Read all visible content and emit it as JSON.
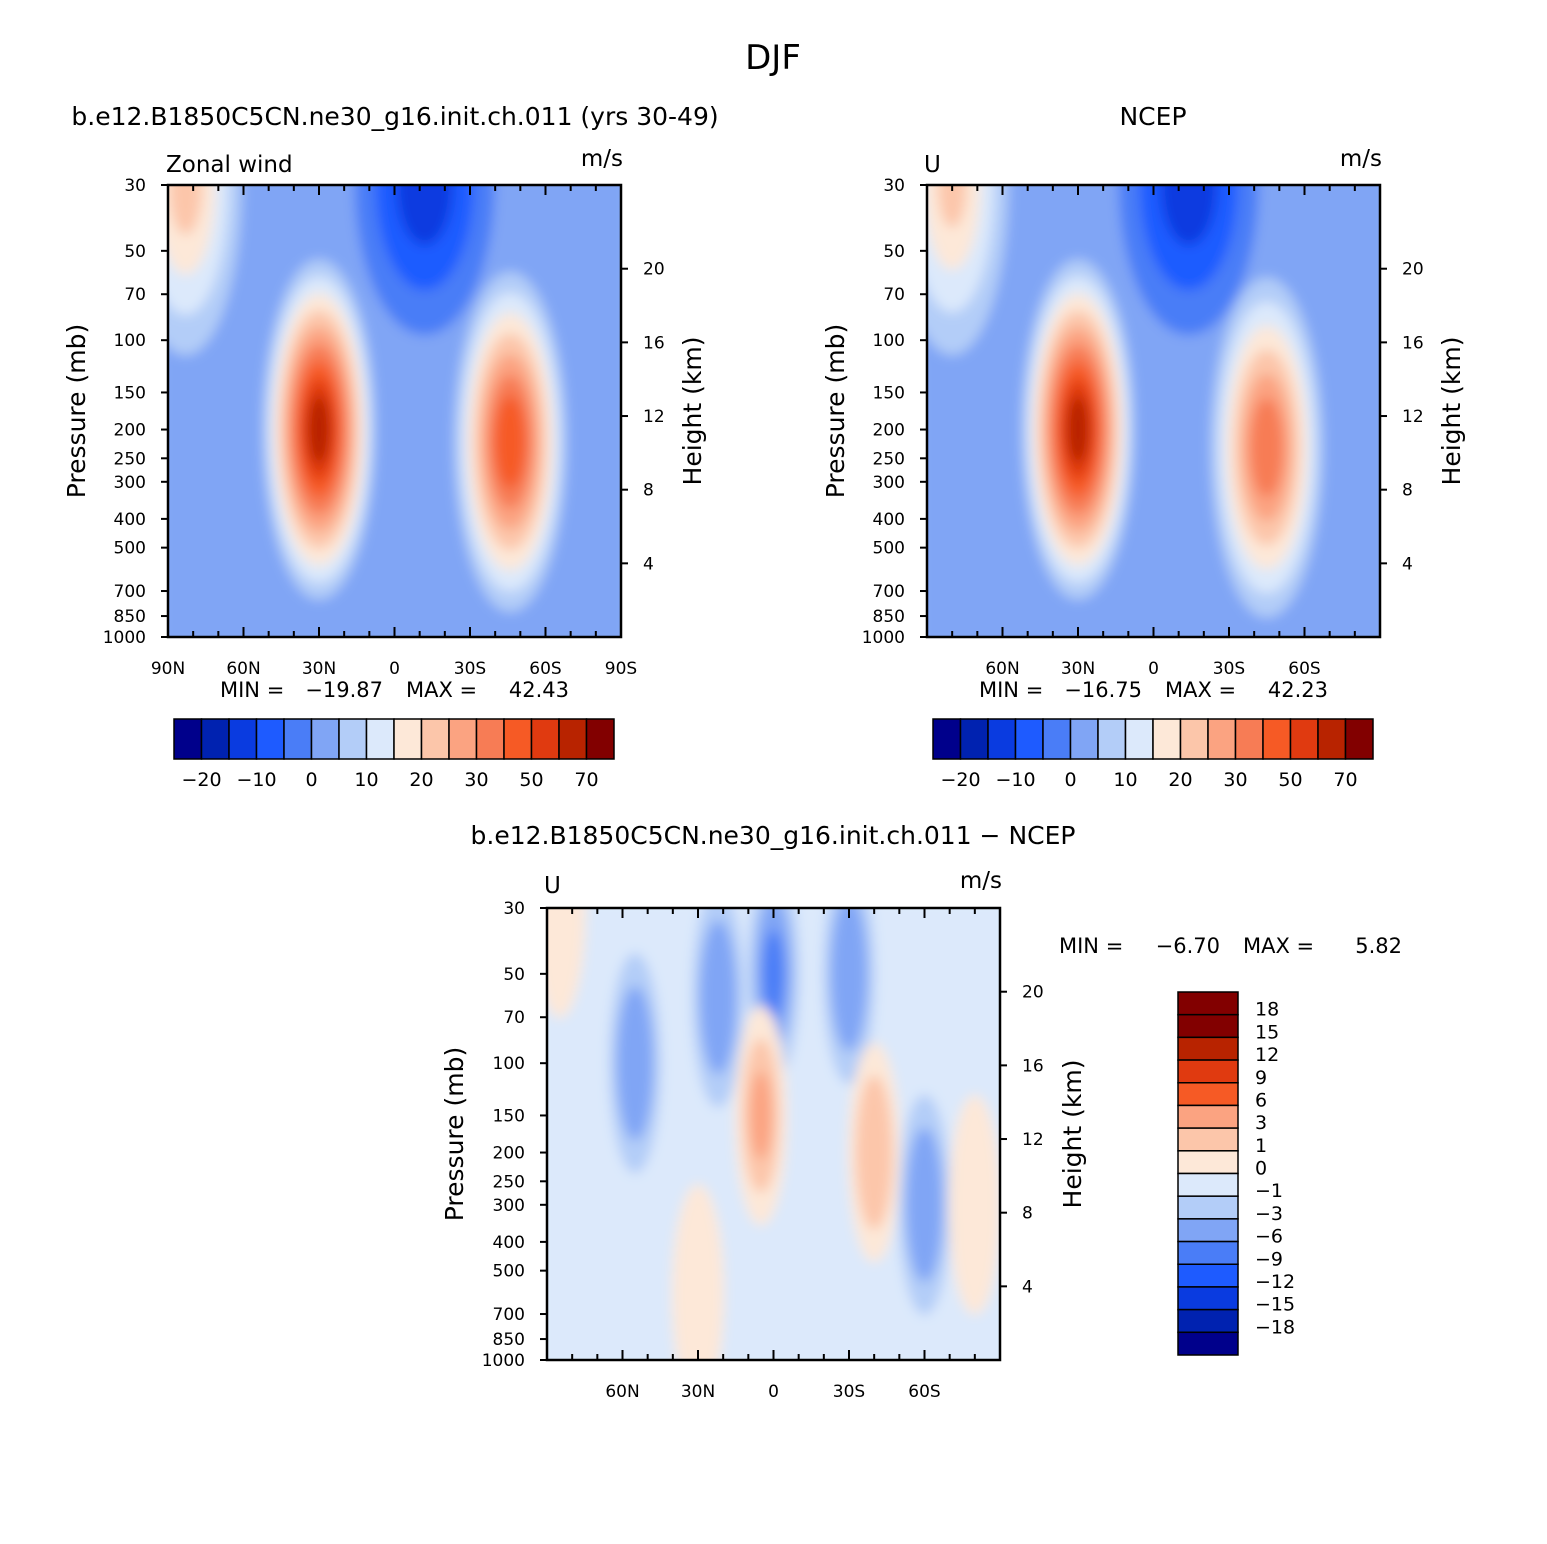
{
  "figure": {
    "title": "DJF"
  },
  "chart_data": [
    {
      "type": "contour",
      "panel": "model",
      "title": "b.e12.B1850C5CN.ne30_g16.init.ch.011 (yrs 30-49)",
      "left_label": "Zonal wind",
      "units": "m/s",
      "ylabel": "Pressure (mb)",
      "ylabel_right": "Height (km)",
      "pressure_ticks": [
        30,
        50,
        70,
        100,
        150,
        200,
        250,
        300,
        400,
        500,
        700,
        850,
        1000
      ],
      "pressure_tick_labels": [
        "30",
        "50",
        "70",
        "100",
        "150",
        "200",
        "250",
        "300",
        "400",
        "500",
        "700",
        "850",
        "1000"
      ],
      "height_ticks": [
        4,
        8,
        12,
        16,
        20
      ],
      "height_tick_labels": [
        "4",
        "8",
        "12",
        "16",
        "20"
      ],
      "lat_ticks": [
        90,
        60,
        30,
        0,
        -30,
        -60,
        -90
      ],
      "lat_tick_labels": [
        "90N",
        "60N",
        "30N",
        "0",
        "30S",
        "60S",
        "90S"
      ],
      "xlim": [
        90,
        -90
      ],
      "ylim": [
        30,
        1000
      ],
      "min_label": "MIN =",
      "min_value": "−19.87",
      "max_label": "MAX =",
      "max_value": "42.43",
      "jets": [
        {
          "lat": 30,
          "p": 200,
          "peak": 42.43
        },
        {
          "lat": -46,
          "p": 220,
          "peak": 35
        },
        {
          "lat": 83,
          "p": 30,
          "peak": 18
        }
      ],
      "lows": [
        {
          "lat": -12,
          "p": 30,
          "peak": -19.87
        }
      ]
    },
    {
      "type": "contour",
      "panel": "obs",
      "title": "NCEP",
      "left_label": "U",
      "units": "m/s",
      "ylabel": "Pressure (mb)",
      "ylabel_right": "Height (km)",
      "pressure_ticks": [
        30,
        50,
        70,
        100,
        150,
        200,
        250,
        300,
        400,
        500,
        700,
        850,
        1000
      ],
      "pressure_tick_labels": [
        "30",
        "50",
        "70",
        "100",
        "150",
        "200",
        "250",
        "300",
        "400",
        "500",
        "700",
        "850",
        "1000"
      ],
      "height_ticks": [
        4,
        8,
        12,
        16,
        20
      ],
      "height_tick_labels": [
        "4",
        "8",
        "12",
        "16",
        "20"
      ],
      "lat_ticks": [
        60,
        30,
        0,
        -30,
        -60
      ],
      "lat_tick_labels": [
        "60N",
        "30N",
        "0",
        "30S",
        "60S"
      ],
      "xlim": [
        90,
        -90
      ],
      "ylim": [
        30,
        1000
      ],
      "min_label": "MIN =",
      "min_value": "−16.75",
      "max_label": "MAX =",
      "max_value": "42.23",
      "jets": [
        {
          "lat": 30,
          "p": 200,
          "peak": 42.23
        },
        {
          "lat": -45,
          "p": 230,
          "peak": 30
        },
        {
          "lat": 80,
          "p": 30,
          "peak": 17
        }
      ],
      "lows": [
        {
          "lat": -14,
          "p": 30,
          "peak": -16.75
        }
      ]
    },
    {
      "type": "contour",
      "panel": "difference",
      "title": "b.e12.B1850C5CN.ne30_g16.init.ch.011 − NCEP",
      "left_label": "U",
      "units": "m/s",
      "ylabel": "Pressure (mb)",
      "ylabel_right": "Height (km)",
      "pressure_ticks": [
        30,
        50,
        70,
        100,
        150,
        200,
        250,
        300,
        400,
        500,
        700,
        850,
        1000
      ],
      "pressure_tick_labels": [
        "30",
        "50",
        "70",
        "100",
        "150",
        "200",
        "250",
        "300",
        "400",
        "500",
        "700",
        "850",
        "1000"
      ],
      "height_ticks": [
        4,
        8,
        12,
        16,
        20
      ],
      "height_tick_labels": [
        "4",
        "8",
        "12",
        "16",
        "20"
      ],
      "lat_ticks": [
        60,
        30,
        0,
        -30,
        -60
      ],
      "lat_tick_labels": [
        "60N",
        "30N",
        "0",
        "30S",
        "60S"
      ],
      "xlim": [
        90,
        -90
      ],
      "ylim": [
        30,
        1000
      ],
      "min_label": "MIN =",
      "min_value": "−6.70",
      "max_label": "MAX =",
      "max_value": "5.82",
      "positive_regions": [
        {
          "lat": 5,
          "p": 150,
          "peak": 5.82
        },
        {
          "lat": -40,
          "p": 200,
          "peak": 5
        },
        {
          "lat": 85,
          "p": 30,
          "peak": 2
        },
        {
          "lat": -80,
          "p": 300,
          "peak": 2
        },
        {
          "lat": 30,
          "p": 600,
          "peak": 1.5
        }
      ],
      "negative_regions": [
        {
          "lat": 0,
          "p": 50,
          "peak": -6.7
        },
        {
          "lat": -60,
          "p": 300,
          "peak": -5
        },
        {
          "lat": 55,
          "p": 100,
          "peak": -3
        },
        {
          "lat": 22,
          "p": 60,
          "peak": -3.5
        },
        {
          "lat": -30,
          "p": 50,
          "peak": -4
        }
      ]
    }
  ],
  "colorbars": {
    "main": {
      "levels": [
        "−20",
        "−10",
        "0",
        "10",
        "20",
        "30",
        "50",
        "70"
      ],
      "colors": [
        "#00008b",
        "#0022b0",
        "#0a3be0",
        "#1e5bff",
        "#4a7df7",
        "#80a5f5",
        "#b3cdf8",
        "#dce9fb",
        "#fde8d8",
        "#fcc6aa",
        "#fba381",
        "#f77c55",
        "#f65a25",
        "#e03a10",
        "#b82300",
        "#820000"
      ]
    },
    "diff": {
      "levels": [
        "18",
        "15",
        "12",
        "9",
        "6",
        "3",
        "1",
        "0",
        "−1",
        "−3",
        "−6",
        "−9",
        "−12",
        "−15",
        "−18"
      ],
      "colors": [
        "#820000",
        "#b82300",
        "#e03a10",
        "#f65a25",
        "#fba381",
        "#fcc6aa",
        "#fde8d8",
        "#dce9fb",
        "#b3cdf8",
        "#80a5f5",
        "#4a7df7",
        "#1e5bff",
        "#0a3be0",
        "#0022b0",
        "#00008b"
      ]
    }
  }
}
